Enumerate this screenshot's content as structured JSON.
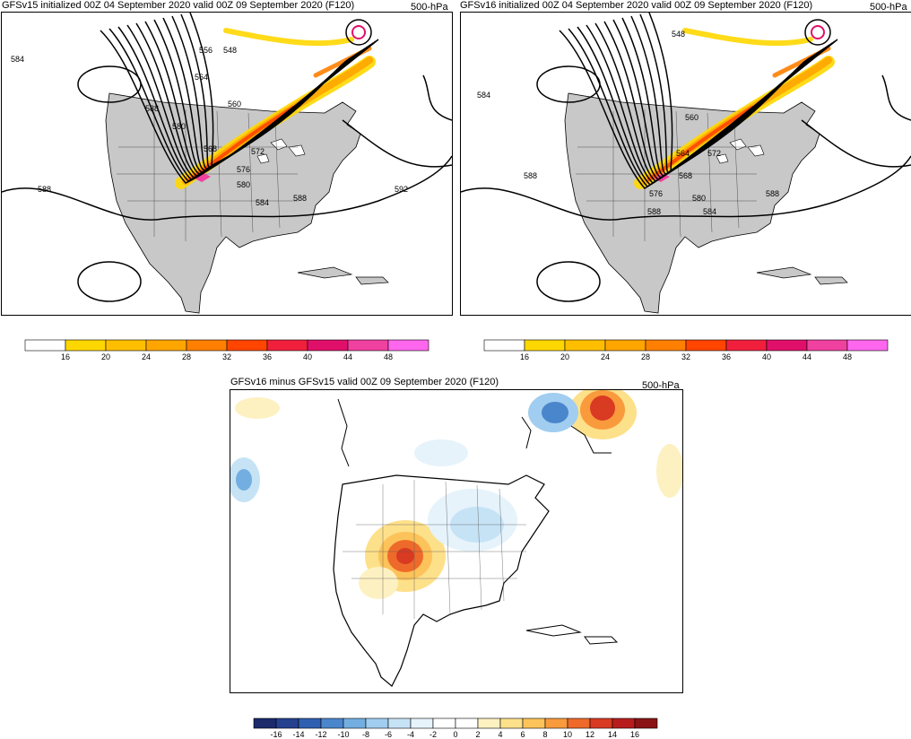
{
  "panel_left": {
    "title": "GFSv15 initialized 00Z 04 September 2020 valid 00Z 09 September 2020 (F120)",
    "level": "500-hPa",
    "contour_labels": [
      "584",
      "588",
      "588",
      "580",
      "564",
      "556",
      "548",
      "560",
      "568",
      "572",
      "576",
      "580",
      "584",
      "588",
      "592"
    ]
  },
  "panel_right": {
    "title": "GFSv16 initialized 00Z 04 September 2020 valid 00Z 09 September 2020 (F120)",
    "level": "500-hPa",
    "contour_labels": [
      "584",
      "588",
      "548",
      "560",
      "564",
      "568",
      "572",
      "576",
      "580",
      "584",
      "588",
      "588"
    ]
  },
  "panel_diff": {
    "title": "GFSv16 minus GFSv15 valid 00Z 09 September 2020 (F120)",
    "level": "500-hPa"
  },
  "colorbar_wind": {
    "ticks": [
      "16",
      "20",
      "24",
      "28",
      "32",
      "36",
      "40",
      "44",
      "48"
    ],
    "colors": [
      "#ffffff",
      "#ffd700",
      "#ffbf00",
      "#ffa500",
      "#ff7f00",
      "#ff4500",
      "#f0203c",
      "#e0106a",
      "#f040a0",
      "#ff66ee"
    ]
  },
  "colorbar_diff": {
    "ticks": [
      "-16",
      "-14",
      "-12",
      "-10",
      "-8",
      "-6",
      "-4",
      "-2",
      "0",
      "2",
      "4",
      "6",
      "8",
      "10",
      "12",
      "14",
      "16"
    ],
    "colors": [
      "#1b2a6b",
      "#24408f",
      "#2f5fb0",
      "#4a86cc",
      "#73aee0",
      "#a0cdf0",
      "#c6e3f6",
      "#e6f3fb",
      "#ffffff",
      "#ffffff",
      "#fdf1c2",
      "#fde08a",
      "#fcc35a",
      "#f99a3c",
      "#ee6a2a",
      "#d93a22",
      "#b81d1d",
      "#8a1414"
    ]
  }
}
